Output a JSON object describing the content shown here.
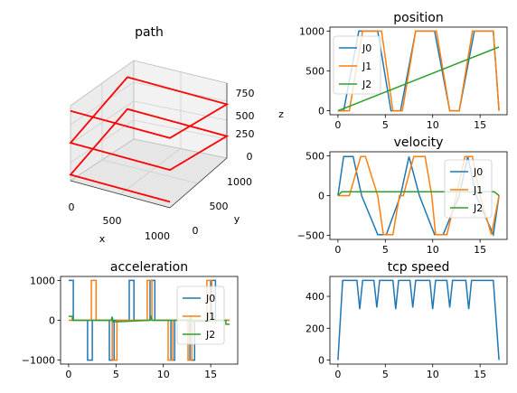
{
  "colors": {
    "J0": "#1f77b4",
    "J1": "#ff7f0e",
    "J2": "#2ca02c",
    "path": "#ff0000",
    "tcp": "#1f77b4"
  },
  "chart_data": [
    {
      "type": "line3d",
      "title": "path",
      "xlabel": "x",
      "ylabel": "y",
      "zlabel": "z",
      "x_ticks": [
        "0",
        "500",
        "1000"
      ],
      "y_ticks": [
        "0",
        "500",
        "1000"
      ],
      "z_ticks": [
        "0",
        "250",
        "500",
        "750"
      ],
      "xlim": [
        0,
        1000
      ],
      "ylim": [
        0,
        1000
      ],
      "zlim": [
        0,
        800
      ],
      "points": [
        [
          0,
          0,
          800
        ],
        [
          1000,
          0,
          800
        ],
        [
          1000,
          1000,
          600
        ],
        [
          0,
          1000,
          600
        ],
        [
          0,
          0,
          400
        ],
        [
          1000,
          0,
          400
        ],
        [
          1000,
          1000,
          200
        ],
        [
          0,
          1000,
          200
        ],
        [
          0,
          0,
          0
        ],
        [
          1000,
          0,
          0
        ]
      ]
    },
    {
      "type": "line",
      "title": "position",
      "xlim": [
        0,
        17
      ],
      "ylim": [
        0,
        1000
      ],
      "x_ticks": [
        "0",
        "5",
        "10",
        "15"
      ],
      "y_ticks": [
        "0",
        "500",
        "1000"
      ],
      "legend": {
        "placement": "upper-left"
      },
      "series": [
        {
          "name": "J0",
          "x": [
            0,
            0.6,
            2.2,
            4.2,
            5.6,
            6.6,
            8.2,
            10.2,
            11.8,
            12.8,
            14.4,
            16.4,
            17
          ],
          "y": [
            0,
            0,
            1000,
            1000,
            0,
            0,
            1000,
            1000,
            0,
            0,
            1000,
            1000,
            0
          ]
        },
        {
          "name": "J1",
          "x": [
            0,
            1.2,
            2.6,
            4.6,
            5.8,
            6.8,
            8.2,
            10.4,
            11.8,
            12.8,
            14.2,
            16.4,
            17
          ],
          "y": [
            0,
            0,
            1000,
            1000,
            0,
            0,
            1000,
            1000,
            0,
            0,
            1000,
            1000,
            0
          ]
        },
        {
          "name": "J2",
          "x": [
            0,
            17
          ],
          "y": [
            0,
            800
          ]
        }
      ]
    },
    {
      "type": "line",
      "title": "velocity",
      "xlim": [
        0,
        17
      ],
      "ylim": [
        -500,
        500
      ],
      "x_ticks": [
        "0",
        "5",
        "10",
        "15"
      ],
      "y_ticks": [
        "−500",
        "0",
        "500"
      ],
      "legend": {
        "placement": "right"
      },
      "series": [
        {
          "name": "J0",
          "x": [
            0,
            0.6,
            1.6,
            1.6,
            2.5,
            4.2,
            5.1,
            5.1,
            6.6,
            7.5,
            7.5,
            8.6,
            10.2,
            11.1,
            11.1,
            12.8,
            13.7,
            13.7,
            14.6,
            16.4,
            17
          ],
          "y": [
            0,
            490,
            490,
            490,
            0,
            -490,
            -490,
            -490,
            0,
            490,
            490,
            0,
            -490,
            -490,
            -490,
            0,
            490,
            490,
            0,
            -490,
            0
          ]
        },
        {
          "name": "J1",
          "x": [
            0,
            1.2,
            2.4,
            2.9,
            4.2,
            4.8,
            5.8,
            6.5,
            6.9,
            8.0,
            9.2,
            9.9,
            10.3,
            11.5,
            12.5,
            13.4,
            14.2,
            15.0,
            16.2,
            17
          ],
          "y": [
            0,
            0,
            490,
            490,
            0,
            -490,
            -490,
            0,
            0,
            490,
            490,
            0,
            -490,
            -490,
            0,
            490,
            490,
            0,
            -490,
            0
          ]
        },
        {
          "name": "J2",
          "x": [
            0,
            0.4,
            16.5,
            17
          ],
          "y": [
            0,
            48,
            48,
            0
          ]
        }
      ]
    },
    {
      "type": "line",
      "title": "acceleration",
      "xlim": [
        0,
        17
      ],
      "ylim": [
        -1000,
        1000
      ],
      "x_ticks": [
        "0",
        "5",
        "10",
        "15"
      ],
      "y_ticks": [
        "−1000",
        "0",
        "1000"
      ],
      "legend": {
        "placement": "right"
      },
      "series": [
        {
          "name": "J0",
          "x": [
            0,
            0.5,
            0.5,
            2.0,
            2.0,
            2.5,
            2.5,
            4.3,
            4.3,
            4.8,
            4.8,
            6.4,
            6.4,
            6.9,
            6.9,
            8.6,
            8.6,
            9.1,
            9.1,
            10.8,
            10.8,
            11.2,
            11.2,
            12.8,
            12.8,
            13.3,
            13.3,
            15.0,
            15.0,
            15.5,
            15.5,
            17
          ],
          "y": [
            1000,
            1000,
            0,
            0,
            -1000,
            -1000,
            0,
            0,
            -1000,
            -1000,
            0,
            0,
            1000,
            1000,
            0,
            0,
            1000,
            1000,
            0,
            0,
            -1000,
            -1000,
            0,
            0,
            -1000,
            -1000,
            0,
            0,
            1000,
            1000,
            0,
            0
          ]
        },
        {
          "name": "J1",
          "x": [
            0,
            2.4,
            2.4,
            2.9,
            2.9,
            4.6,
            4.6,
            5.1,
            5.1,
            8.3,
            8.3,
            8.8,
            8.8,
            10.5,
            10.5,
            11.0,
            11.0,
            12.6,
            12.6,
            13.0,
            13.0,
            14.6,
            14.6,
            15.1,
            15.1,
            17
          ],
          "y": [
            0,
            0,
            1000,
            1000,
            0,
            0,
            -1000,
            -1000,
            0,
            0,
            1000,
            1000,
            0,
            0,
            -1000,
            -1000,
            0,
            0,
            -1000,
            -1000,
            0,
            0,
            1000,
            1000,
            0,
            0
          ]
        },
        {
          "name": "J2",
          "x": [
            0,
            0.4,
            0.4,
            4.5,
            4.6,
            4.7,
            8.6,
            8.7,
            8.8,
            12.8,
            12.9,
            13.0,
            16.6,
            16.6,
            17
          ],
          "y": [
            100,
            100,
            0,
            0,
            90,
            -40,
            0,
            80,
            0,
            0,
            70,
            -30,
            0,
            -100,
            -100
          ]
        }
      ]
    },
    {
      "type": "line",
      "title": "tcp speed",
      "xlim": [
        0,
        17
      ],
      "ylim": [
        0,
        500
      ],
      "x_ticks": [
        "0",
        "5",
        "10",
        "15"
      ],
      "y_ticks": [
        "0",
        "200",
        "400"
      ],
      "series": [
        {
          "name": "",
          "x": [
            0,
            0.5,
            2.0,
            2.3,
            2.6,
            3.8,
            4.1,
            4.4,
            5.8,
            6.1,
            6.4,
            7.6,
            7.9,
            8.2,
            9.7,
            10.0,
            10.3,
            11.5,
            11.8,
            12.1,
            13.5,
            13.8,
            14.1,
            16.4,
            17
          ],
          "y": [
            0,
            500,
            500,
            320,
            500,
            500,
            330,
            500,
            500,
            320,
            500,
            500,
            330,
            500,
            500,
            320,
            500,
            500,
            330,
            500,
            500,
            320,
            500,
            500,
            0
          ]
        }
      ]
    }
  ]
}
